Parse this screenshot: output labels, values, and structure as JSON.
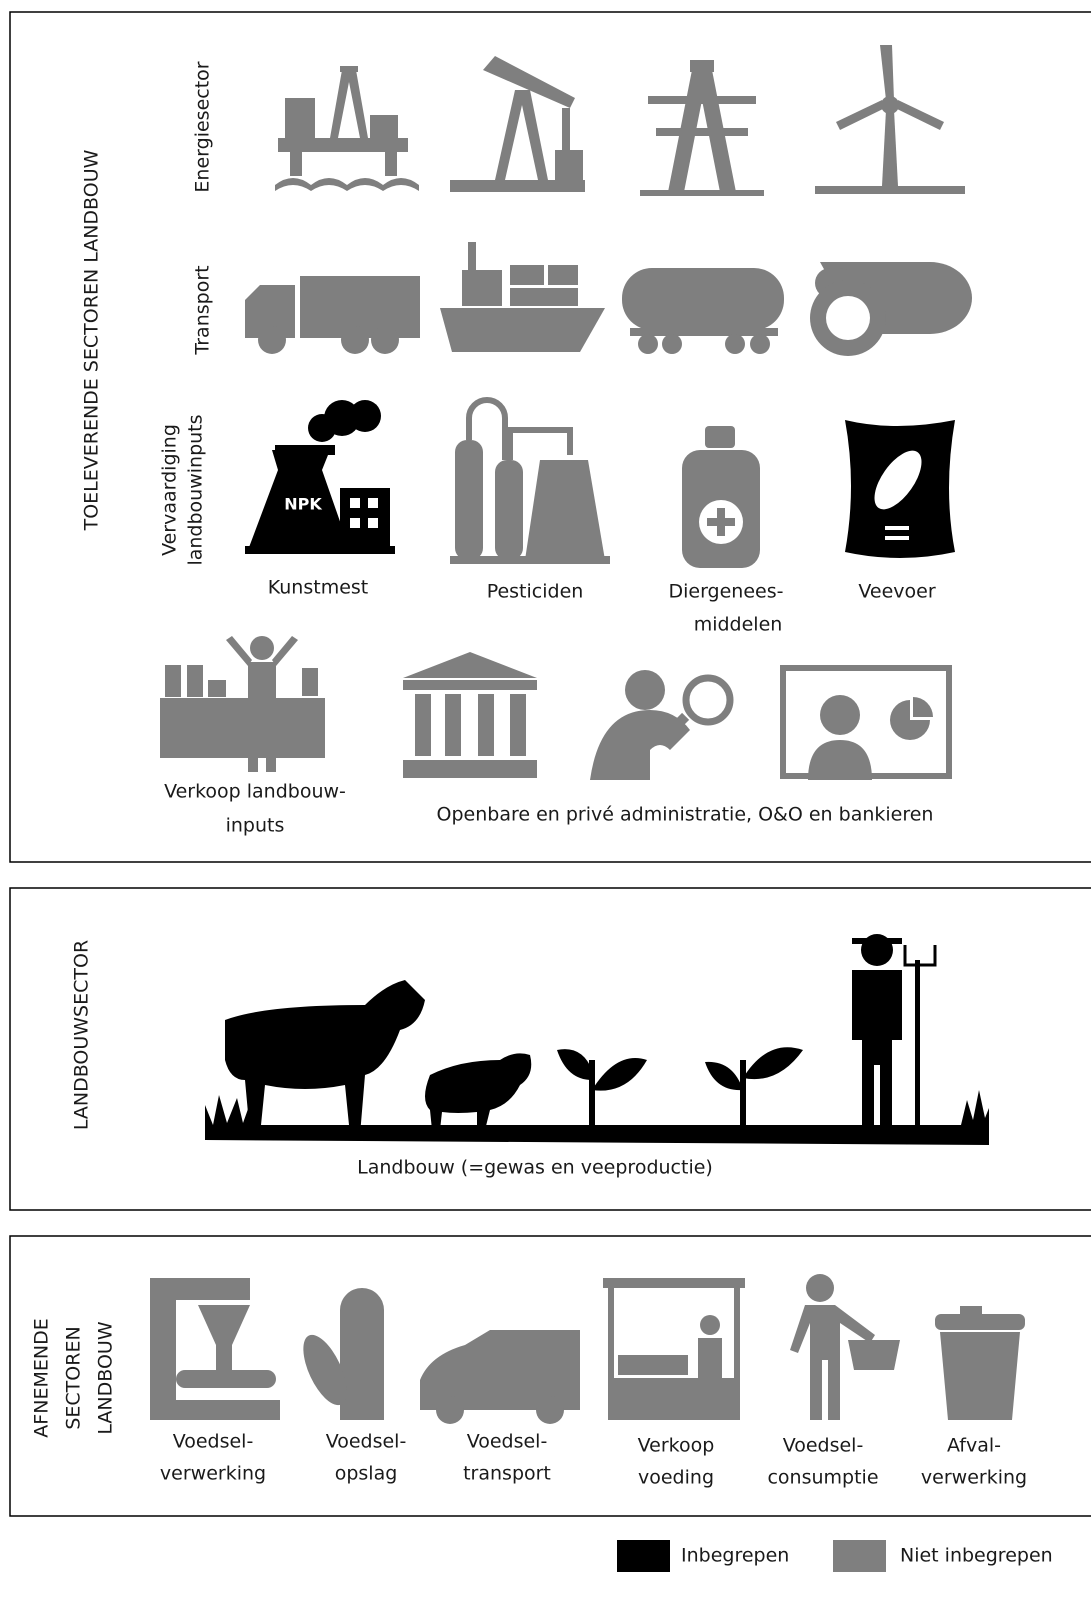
{
  "supplying": {
    "title": "TOELEVERENDE SECTOREN LANDBOUW",
    "rows": [
      {
        "label": [
          "Energiesector"
        ]
      },
      {
        "label": [
          "Transport"
        ]
      },
      {
        "label": [
          "Vervaardiging",
          "landbouwinputs"
        ]
      }
    ],
    "icon_text": "NPK",
    "inputs": [
      [
        "Kunstmest"
      ],
      [
        "Pesticiden"
      ],
      [
        "Diergenees-",
        "middelen"
      ],
      [
        "Veevoer"
      ]
    ],
    "services": [
      [
        "Verkoop landbouw-",
        "inputs"
      ],
      [
        "Openbare en privé administratie, O&O en bankieren"
      ]
    ]
  },
  "agriculture": {
    "title": "LANDBOUWSECTOR",
    "caption": "Landbouw (=gewas en veeproductie)"
  },
  "receiving": {
    "title": [
      "AFNEMENDE",
      "SECTOREN",
      "LANDBOUW"
    ],
    "items": [
      [
        "Voedsel-",
        "verwerking"
      ],
      [
        "Voedsel-",
        "opslag"
      ],
      [
        "Voedsel-",
        "transport"
      ],
      [
        "Verkoop",
        "voeding"
      ],
      [
        "Voedsel-",
        "consumptie"
      ],
      [
        "Afval-",
        "verwerking"
      ]
    ]
  },
  "legend": [
    "Inbegrepen",
    "Niet inbegrepen"
  ]
}
